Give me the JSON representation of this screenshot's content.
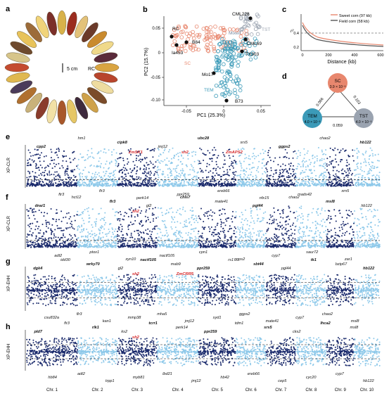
{
  "panels": {
    "a": {
      "letter": "a",
      "label": "RC",
      "scale": "5 cm"
    },
    "b": {
      "letter": "b",
      "xlabel": "PC1 (25.3%)",
      "ylabel": "PC2 (15.7%)",
      "xticks": [
        "-0.05",
        "0",
        "0.05"
      ],
      "yticks": [
        "0.05",
        "0",
        "-0.05",
        "-0.10"
      ],
      "points": [
        "RC",
        "B84",
        "Ia453",
        "CML228",
        "CML69",
        "TX303",
        "Mo17",
        "B73"
      ],
      "groups": [
        "TST",
        "Mixed",
        "SC",
        "TEM"
      ]
    },
    "c": {
      "letter": "c",
      "xlabel": "Distance (kb)",
      "ylabel": "r²",
      "xticks": [
        "0",
        "200",
        "400",
        "600"
      ],
      "yticks": [
        "0.4",
        "0.2"
      ],
      "legend": [
        "Sweet corn (97 kb)",
        "Field corn (58 kb)"
      ]
    },
    "d": {
      "letter": "d",
      "nodes": [
        {
          "name": "SC",
          "value": "3.9 × 10⁻³"
        },
        {
          "name": "TEM",
          "value": "4.0 × 10⁻³"
        },
        {
          "name": "TST",
          "value": "4.0 × 10⁻³"
        }
      ],
      "edges": [
        "0.066",
        "0.103",
        "0.059"
      ]
    },
    "e": {
      "letter": "e",
      "ylabel": "XP-CLR",
      "genes_black": [
        "cpp2",
        "ftr3",
        "hm1",
        "flr3",
        "cipk8",
        "perk14",
        "jmj12",
        "ppr259",
        "ubc28",
        "ereb66",
        "srs5",
        "nfx15",
        "ggps2",
        "mads42",
        "chao2",
        "xrn5",
        "hb122"
      ],
      "genes_red": [
        "ZmSK1",
        "sh2",
        "ZmAPS2"
      ]
    },
    "f": {
      "letter": "f",
      "ylabel": "XP-CLR",
      "genes_black": [
        "dna/1",
        "adt2",
        "hct12",
        "ptox1",
        "flr3",
        "xyn10",
        "gl2",
        "nactf105",
        "chls7",
        "cpn1",
        "mate41",
        "ggps2",
        "pgl44",
        "cyp7",
        "chao2",
        "saur72",
        "msl8",
        "zar1",
        "hb122"
      ],
      "genes_red": [
        "sh2"
      ]
    },
    "g": {
      "letter": "g",
      "ylabel": "XP-EHH",
      "genes_black": [
        "dgk4",
        "csu832a",
        "idd30",
        "flr3",
        "wrky70",
        "kan1",
        "gl2",
        "mmp38",
        "nactf105",
        "mha5",
        "mab9",
        "jmj12",
        "ppr259",
        "syd1",
        "rs1",
        "ggps2",
        "sbt44",
        "mate41",
        "pgl44",
        "cyp7",
        "tk1",
        "chao2",
        "bzip67",
        "msl8",
        "hb122"
      ],
      "genes_red": [
        "sh2",
        "ZmCRR5"
      ]
    },
    "h": {
      "letter": "h",
      "ylabel": "XP-EHH",
      "genes_black": [
        "pld7",
        "hb84",
        "flr3",
        "adt2",
        "rlk1",
        "trpp1",
        "ks2",
        "myb81",
        "tcrr1",
        "lbd21",
        "perk14",
        "jmj12",
        "ppr259",
        "hb42",
        "tdm1",
        "ereb66",
        "srs5",
        "cep5",
        "cks2",
        "cyc20",
        "lhca2",
        "cyp7",
        "msl8",
        "hb122"
      ],
      "genes_red": [
        "sh2"
      ]
    }
  },
  "chromosomes": [
    "Chr. 1",
    "Chr. 2",
    "Chr. 3",
    "Chr. 4",
    "Chr. 5",
    "Chr. 6",
    "Chr. 7",
    "Chr. 8",
    "Chr. 9",
    "Chr. 10"
  ],
  "colors": {
    "dark": "#1a2a6c",
    "light": "#8ec9ea",
    "red": "#d62728",
    "salmon": "#e8876e",
    "teal": "#3b9ab8",
    "grey": "#9aa3b0"
  }
}
